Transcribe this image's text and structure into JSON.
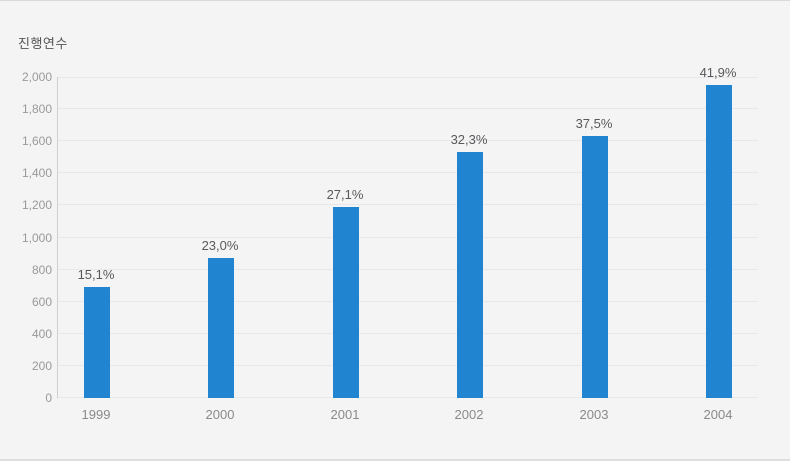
{
  "chart_data": {
    "type": "bar",
    "title": "진행연수",
    "categories": [
      "1999",
      "2000",
      "2001",
      "2002",
      "2003",
      "2004"
    ],
    "values": [
      690,
      870,
      1190,
      1530,
      1630,
      1950
    ],
    "bar_labels": [
      "15,1%",
      "23,0%",
      "27,1%",
      "32,3%",
      "37,5%",
      "41,9%"
    ],
    "xlabel": "",
    "ylabel": "진행연수",
    "ylim": [
      0,
      2000
    ],
    "ytick_step": 200,
    "ytick_labels": [
      "0",
      "200",
      "400",
      "600",
      "800",
      "1,000",
      "1,200",
      "1,400",
      "1,600",
      "1,800",
      "2,000"
    ],
    "grid": true,
    "legend": "none",
    "bar_color": "#2184d0",
    "background_color": "#f4f4f4",
    "gridline_color": "#e8e8ea",
    "axis_line_color": "#cfcfcf"
  }
}
